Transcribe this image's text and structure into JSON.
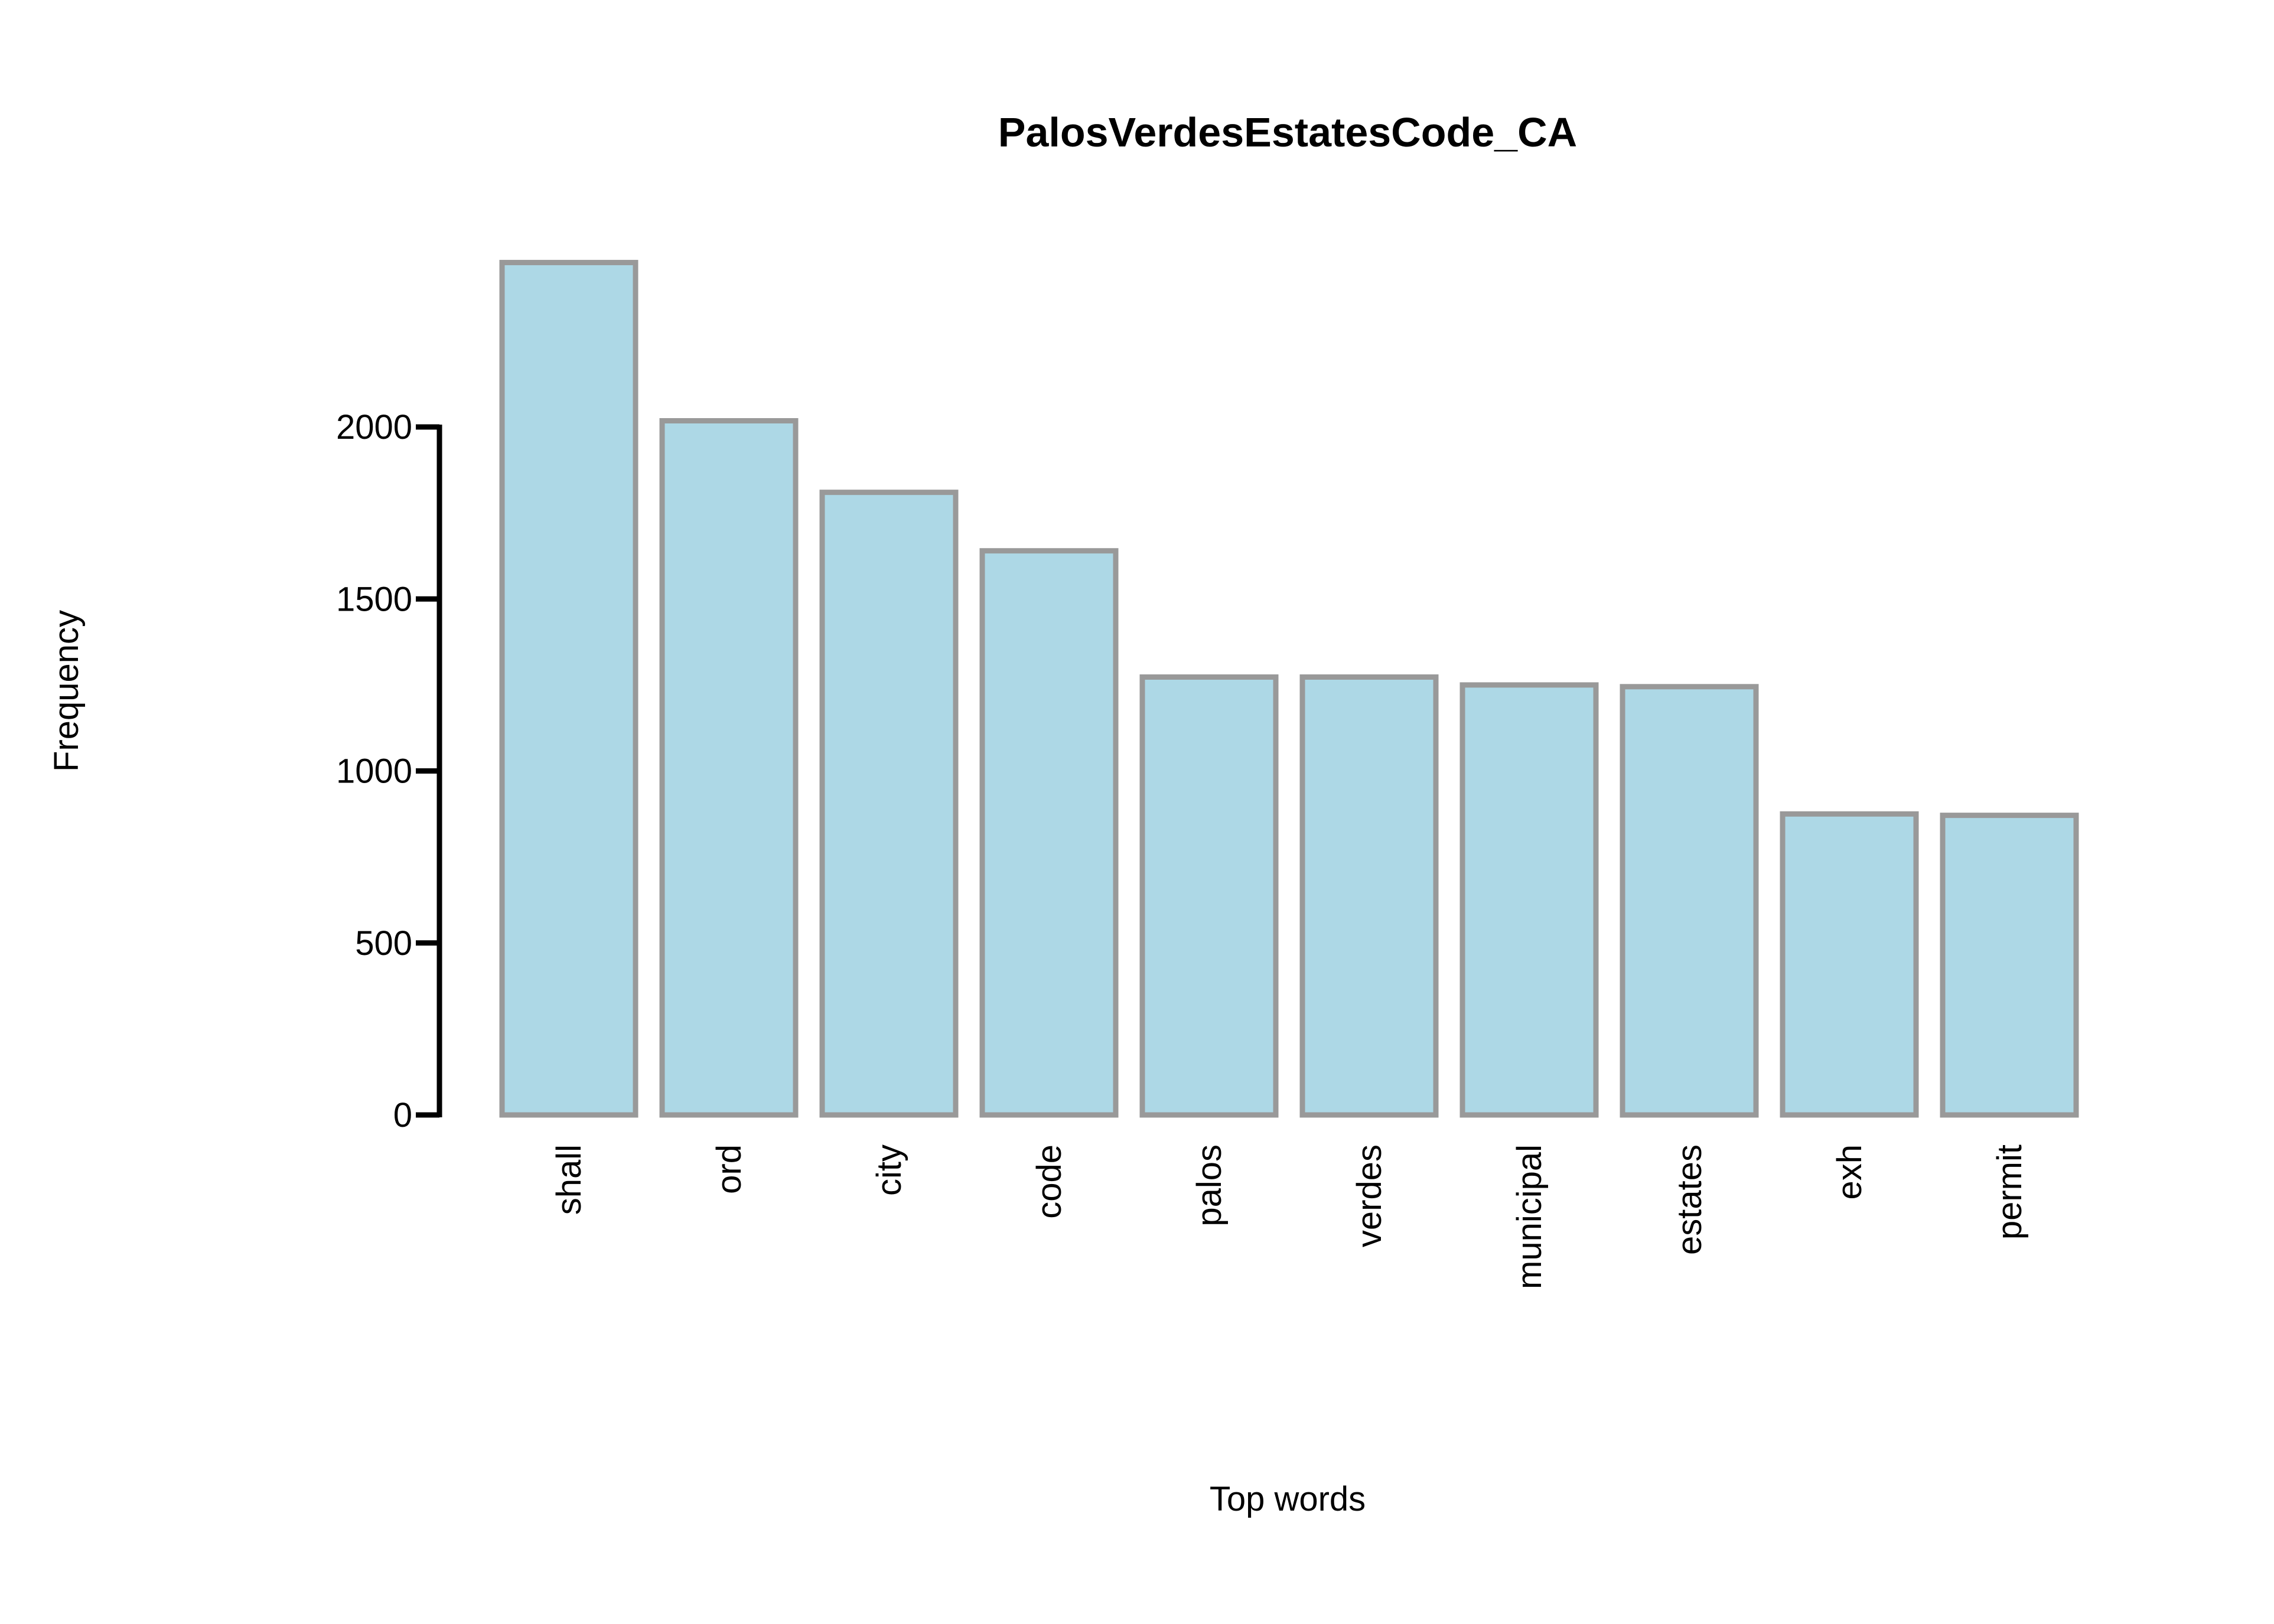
{
  "chart_data": {
    "type": "bar",
    "title": "PalosVerdesEstatesCode_CA",
    "xlabel": "Top words",
    "ylabel": "Frequency",
    "categories": [
      "shall",
      "ord",
      "city",
      "code",
      "palos",
      "verdes",
      "municipal",
      "estates",
      "exh",
      "permit"
    ],
    "values": [
      2478,
      2018,
      1810,
      1640,
      1273,
      1273,
      1250,
      1245,
      875,
      871
    ],
    "yticks": [
      "0",
      "500",
      "1000",
      "1500",
      "2000"
    ],
    "ytick_values": [
      0,
      500,
      1000,
      1500,
      2000
    ],
    "ylim": [
      0,
      2478
    ],
    "grid": false,
    "legend": "none",
    "colors": {
      "bar_fill": "#add8e6",
      "bar_stroke": "#999999",
      "axis": "#000000",
      "text": "#000000"
    }
  }
}
